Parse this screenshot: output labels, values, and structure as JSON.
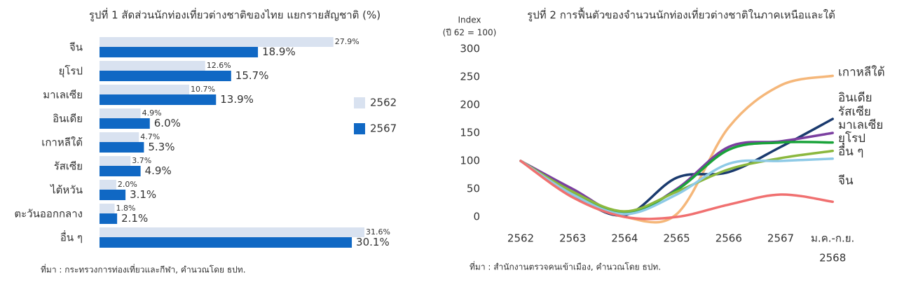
{
  "chart_data": [
    {
      "type": "hbar",
      "title": "รูปที่ 1 สัดส่วนนักท่องเที่ยวต่างชาติของไทย แยกรายสัญชาติ (%)",
      "categories": [
        "จีน",
        "ยุโรป",
        "มาเลเซีย",
        "อินเดีย",
        "เกาหลีใต้",
        "รัสเซีย",
        "ไต้หวัน",
        "ตะวันออกกลาง",
        "อื่น ๆ"
      ],
      "series": [
        {
          "name": "2562",
          "color": "#d9e2f0",
          "values": [
            27.9,
            12.6,
            10.7,
            4.9,
            4.7,
            3.7,
            2.0,
            1.8,
            31.6
          ],
          "value_labels": [
            "27.9%",
            "12.6%",
            "10.7%",
            "4.9%",
            "4.7%",
            "3.7%",
            "2.0%",
            "1.8%",
            "31.6%"
          ]
        },
        {
          "name": "2567",
          "color": "#1068c4",
          "values": [
            18.9,
            15.7,
            13.9,
            6.0,
            5.3,
            4.9,
            3.1,
            2.1,
            30.1
          ],
          "value_labels": [
            "18.9%",
            "15.7%",
            "13.9%",
            "6.0%",
            "5.3%",
            "4.9%",
            "3.1%",
            "2.1%",
            "30.1%"
          ]
        }
      ],
      "legend": "right",
      "source": "ที่มา : กระทรวงการท่องเที่ยวและกีฬา, คำนวณโดย ธปท."
    },
    {
      "type": "line",
      "title": "รูปที่ 2 การฟื้นตัวของจำนวนนักท่องเที่ยวต่างชาติในภาคเหนือและใต้",
      "ylabel": [
        "Index",
        "(ปี 62 = 100)"
      ],
      "categories": [
        "2562",
        "2563",
        "2564",
        "2565",
        "2566",
        "2567",
        [
          "ม.ค.-ก.ย.",
          "2568"
        ]
      ],
      "ylim": [
        0,
        300
      ],
      "yticks": [
        0,
        50,
        100,
        150,
        200,
        250,
        300
      ],
      "series": [
        {
          "name": "เกาหลีใต้",
          "color": "#f5b77a",
          "values": [
            100,
            35,
            0,
            5,
            160,
            235,
            252
          ]
        },
        {
          "name": "อินเดีย",
          "color": "#1a3a6e",
          "values": [
            100,
            40,
            3,
            70,
            80,
            125,
            175
          ]
        },
        {
          "name": "รัสเซีย",
          "color": "#7b3fa0",
          "values": [
            100,
            50,
            5,
            50,
            125,
            135,
            150
          ]
        },
        {
          "name": "มาเลเซีย",
          "color": "#1aa33a",
          "values": [
            100,
            45,
            8,
            48,
            120,
            133,
            133
          ]
        },
        {
          "name": "ยุโรป",
          "color": "#8bb83e",
          "values": [
            100,
            45,
            10,
            45,
            85,
            105,
            118
          ]
        },
        {
          "name": "อื่น ๆ",
          "color": "#8ecae6",
          "values": [
            100,
            40,
            5,
            40,
            95,
            100,
            104
          ]
        },
        {
          "name": "จีน",
          "color": "#f07070",
          "values": [
            100,
            35,
            0,
            0,
            22,
            40,
            27
          ]
        }
      ],
      "source": "ที่มา : สำนักงานตรวจคนเข้าเมือง, คำนวณโดย ธปท."
    }
  ]
}
